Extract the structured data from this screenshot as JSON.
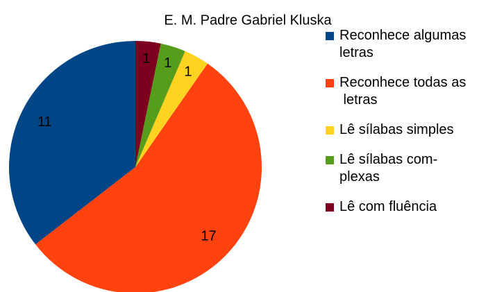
{
  "chart_data": {
    "type": "pie",
    "title": "E. M. Padre Gabriel Kluska",
    "categories": [
      "Reconhece algumas\nletras",
      "Reconhece todas as\n letras",
      "Lê sílabas simples",
      "Lê sílabas com-\nplexas",
      "Lê com fluência"
    ],
    "values": [
      11,
      17,
      1,
      1,
      1
    ],
    "colors": [
      "#004586",
      "#ff420e",
      "#ffd320",
      "#579d1c",
      "#7e0021"
    ],
    "legend": "right"
  }
}
